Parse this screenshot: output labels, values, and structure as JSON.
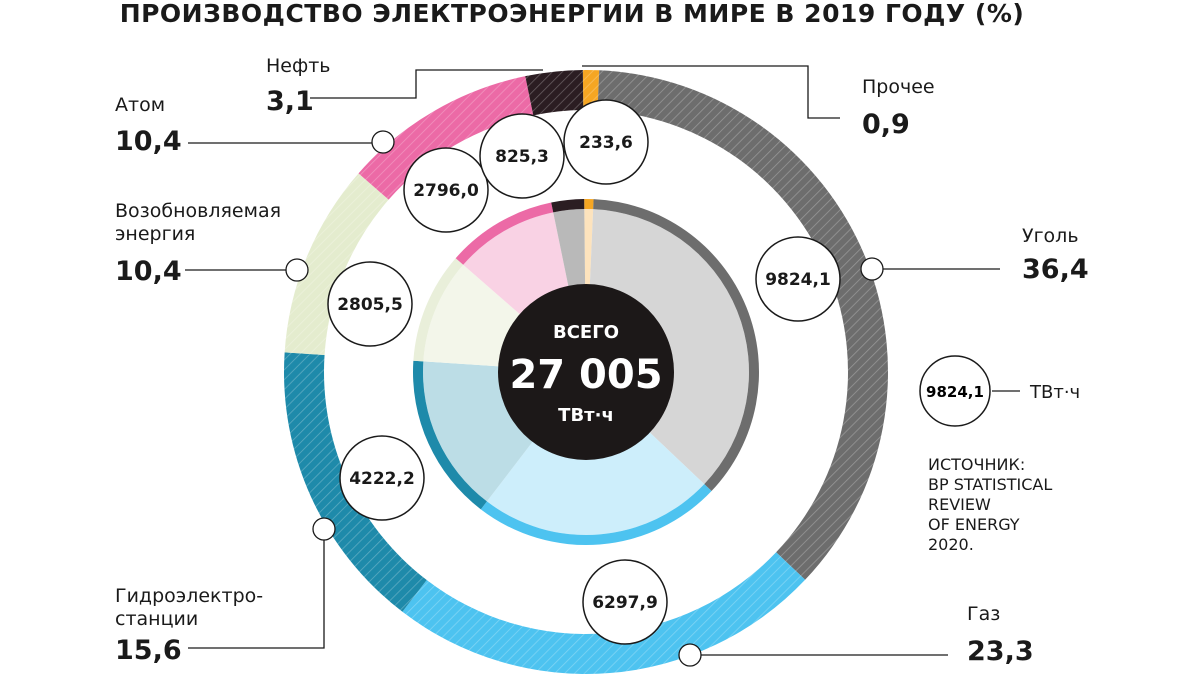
{
  "chart_data": {
    "type": "pie",
    "title": "ПРОИЗВОДСТВО ЭЛЕКТРОЭНЕРГИИ В МИРЕ В 2019 ГОДУ (%)",
    "total": {
      "label": "ВСЕГО",
      "value": "27 005",
      "unit": "ТВт·ч"
    },
    "legend_example": {
      "value": "9824,1",
      "unit": "ТВт·ч"
    },
    "source": [
      "ИСТОЧНИК:",
      "BP STATISTICAL",
      "REVIEW",
      "OF ENERGY",
      "2020."
    ],
    "slices": [
      {
        "key": "other",
        "label": [
          "Прочее"
        ],
        "percent": "0,9",
        "pct_value": 0.9,
        "value": "233,6",
        "twh": 233.6,
        "color": "#f5a623",
        "light": "#fde3bd"
      },
      {
        "key": "coal",
        "label": [
          "Уголь"
        ],
        "percent": "36,4",
        "pct_value": 36.4,
        "value": "9824,1",
        "twh": 9824.1,
        "color": "#6d6d6d",
        "light": "#d6d6d6"
      },
      {
        "key": "gas",
        "label": [
          "Газ"
        ],
        "percent": "23,3",
        "pct_value": 23.3,
        "value": "6297,9",
        "twh": 6297.9,
        "color": "#4dc3f0",
        "light": "#cdeefb"
      },
      {
        "key": "hydro",
        "label": [
          "Гидроэлектро-",
          "станции"
        ],
        "percent": "15,6",
        "pct_value": 15.6,
        "value": "4222,2",
        "twh": 4222.2,
        "color": "#1e8aaa",
        "light": "#bcdde6"
      },
      {
        "key": "renew",
        "label": [
          "Возобновляемая",
          "энергия"
        ],
        "percent": "10,4",
        "pct_value": 10.4,
        "value": "2805,5",
        "twh": 2805.5,
        "color": "#e4ecce",
        "light": "#f3f6ea"
      },
      {
        "key": "nuclear",
        "label": [
          "Атом"
        ],
        "percent": "10,4",
        "pct_value": 10.4,
        "value": "2796,0",
        "twh": 2796.0,
        "color": "#ec6aa6",
        "light": "#f9d2e4"
      },
      {
        "key": "oil",
        "label": [
          "Нефть"
        ],
        "percent": "3,1",
        "pct_value": 3.1,
        "value": "825,3",
        "twh": 825.3,
        "color": "#2b1d22",
        "light": "#b9b9b9"
      }
    ]
  }
}
